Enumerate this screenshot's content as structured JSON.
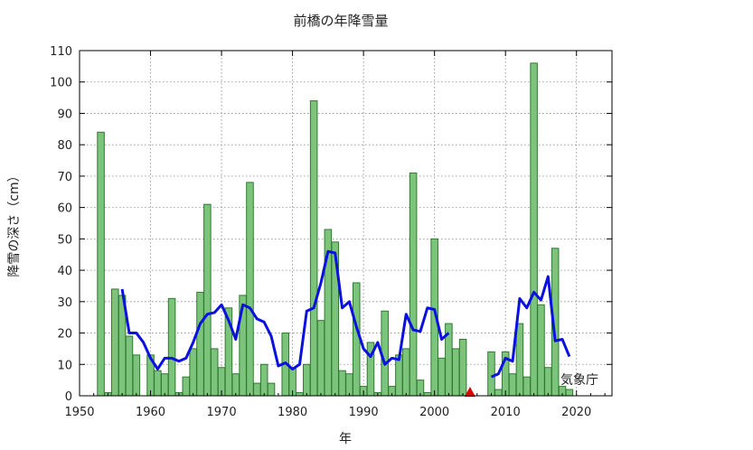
{
  "chart_data": {
    "type": "bar",
    "title": "前橋の年降雪量",
    "xlabel": "年",
    "ylabel": "降雪の深さ（cm）",
    "source_note": "気象庁",
    "xlim": [
      1950,
      2025
    ],
    "ylim": [
      0,
      110
    ],
    "xticks": [
      1950,
      1960,
      1970,
      1980,
      1990,
      2000,
      2010,
      2020
    ],
    "yticks": [
      0,
      10,
      20,
      30,
      40,
      50,
      60,
      70,
      80,
      90,
      100,
      110
    ],
    "grid": true,
    "bar_color": "#7cc47c",
    "line_color": "#0a10e0",
    "marker_color": "#dd0000",
    "series": [
      {
        "kind": "bar",
        "x": [
          1953,
          1954,
          1955,
          1956,
          1957,
          1958,
          1959,
          1960,
          1961,
          1962,
          1963,
          1964,
          1965,
          1966,
          1967,
          1968,
          1969,
          1970,
          1971,
          1972,
          1973,
          1974,
          1975,
          1976,
          1977,
          1978,
          1979,
          1980,
          1981,
          1982,
          1983,
          1984,
          1985,
          1986,
          1987,
          1988,
          1989,
          1990,
          1991,
          1992,
          1993,
          1994,
          1995,
          1996,
          1997,
          1998,
          1999,
          2000,
          2001,
          2002,
          2003,
          2004,
          2005,
          2006,
          2007,
          2008,
          2009,
          2010,
          2011,
          2012,
          2013,
          2014,
          2015,
          2016,
          2017,
          2018,
          2019,
          2020
        ],
        "values": [
          84,
          1,
          34,
          32,
          19,
          13,
          0,
          13,
          8,
          7,
          31,
          1,
          6,
          15,
          33,
          61,
          15,
          9,
          28,
          7,
          32,
          68,
          4,
          10,
          4,
          0,
          20,
          9,
          1,
          10,
          94,
          24,
          53,
          49,
          8,
          7,
          36,
          3,
          17,
          1,
          27,
          3,
          13,
          15,
          71,
          5,
          1,
          50,
          12,
          23,
          15,
          18,
          0,
          0,
          0,
          14,
          2,
          14,
          7,
          23,
          6,
          106,
          29,
          9,
          47,
          3,
          2,
          0
        ]
      },
      {
        "kind": "line",
        "x": [
          1956,
          1957,
          1958,
          1959,
          1960,
          1961,
          1962,
          1963,
          1964,
          1965,
          1966,
          1967,
          1968,
          1969,
          1970,
          1971,
          1972,
          1973,
          1974,
          1975,
          1976,
          1977,
          1978,
          1979,
          1980,
          1981,
          1982,
          1983,
          1984,
          1985,
          1986,
          1987,
          1988,
          1989,
          1990,
          1991,
          1992,
          1993,
          1994,
          1995,
          1996,
          1997,
          1998,
          1999,
          2000,
          2001,
          2002
        ],
        "values": [
          34,
          20,
          20,
          17,
          12,
          8.5,
          12,
          12,
          11,
          12,
          17,
          23,
          26,
          26.5,
          29,
          24,
          18,
          29,
          28,
          24.5,
          23.5,
          19,
          9.5,
          10.5,
          8.5,
          10,
          27,
          28,
          36,
          46,
          45.5,
          28,
          30,
          22,
          15,
          12.5,
          17,
          10,
          12,
          11.5,
          26,
          21,
          20.5,
          28,
          27.5,
          18,
          20
        ]
      },
      {
        "kind": "line",
        "x": [
          2008,
          2009,
          2010,
          2011,
          2012,
          2013,
          2014,
          2015,
          2016,
          2017,
          2018,
          2019
        ],
        "values": [
          6,
          7,
          12,
          11,
          31,
          28,
          33,
          30.5,
          38,
          17.5,
          18,
          12.5
        ]
      },
      {
        "kind": "marker",
        "x": [
          2005
        ],
        "values": [
          0
        ]
      }
    ]
  }
}
